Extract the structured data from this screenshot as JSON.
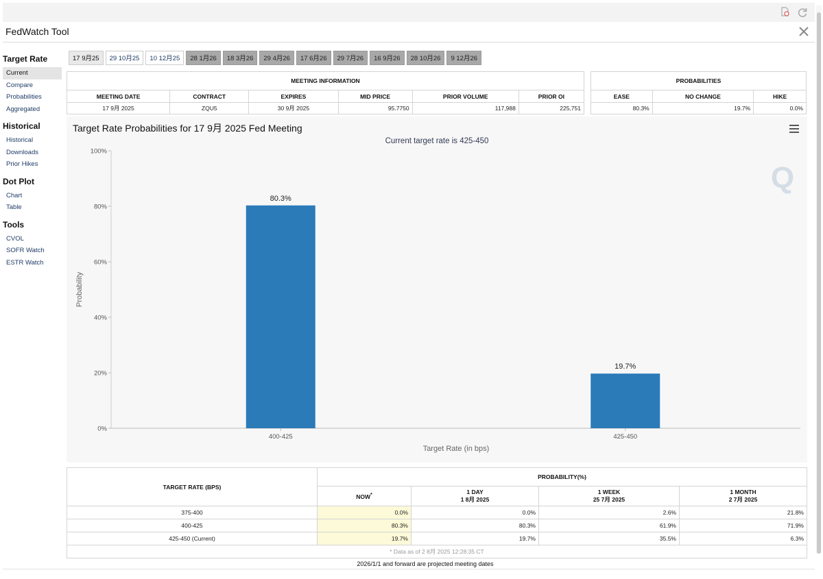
{
  "app": {
    "title": "FedWatch Tool"
  },
  "sidebar": {
    "groups": [
      {
        "heading": "Target Rate",
        "items": [
          "Current",
          "Compare",
          "Probabilities",
          "Aggregated"
        ]
      },
      {
        "heading": "Historical",
        "items": [
          "Historical",
          "Downloads",
          "Prior Hikes"
        ]
      },
      {
        "heading": "Dot Plot",
        "items": [
          "Chart",
          "Table"
        ]
      },
      {
        "heading": "Tools",
        "items": [
          "CVOL",
          "SOFR Watch",
          "ESTR Watch"
        ]
      }
    ],
    "active_item": "Current"
  },
  "tabs": [
    "17 9月25",
    "29 10月25",
    "10 12月25",
    "28 1月26",
    "18 3月26",
    "29 4月26",
    "17 6月26",
    "29 7月26",
    "16 9月26",
    "28 10月26",
    "9 12月26"
  ],
  "meeting_info": {
    "heading": "MEETING INFORMATION",
    "columns": [
      "MEETING DATE",
      "CONTRACT",
      "EXPIRES",
      "MID PRICE",
      "PRIOR VOLUME",
      "PRIOR OI"
    ],
    "row": [
      "17 9月 2025",
      "ZQU5",
      "30 9月 2025",
      "95.7750",
      "117,988",
      "225,751"
    ]
  },
  "probabilities": {
    "heading": "PROBABILITIES",
    "columns": [
      "EASE",
      "NO CHANGE",
      "HIKE"
    ],
    "row": [
      "80.3%",
      "19.7%",
      "0.0%"
    ]
  },
  "chart": {
    "title": "Target Rate Probabilities for 17 9月 2025 Fed Meeting",
    "subtitle": "Current target rate is 425-450",
    "watermark": "Q",
    "colors": {
      "bar": "#2b7bb9",
      "plot_bg": "#f7f7f7"
    }
  },
  "chart_data": {
    "type": "bar",
    "categories": [
      "400-425",
      "425-450"
    ],
    "values": [
      80.3,
      19.7
    ],
    "data_labels": [
      "80.3%",
      "19.7%"
    ],
    "title": "Target Rate Probabilities for 17 9月 2025 Fed Meeting",
    "subtitle": "Current target rate is 425-450",
    "xlabel": "Target Rate (in bps)",
    "ylabel": "Probability",
    "ylim": [
      0,
      100
    ],
    "yticks": [
      "0%",
      "20%",
      "40%",
      "60%",
      "80%",
      "100%"
    ],
    "grid": false
  },
  "prob_table": {
    "rate_heading": "TARGET RATE (BPS)",
    "prob_heading": "PROBABILITY(%)",
    "now_label": "NOW",
    "now_mark": "*",
    "col_1d": [
      "1 DAY",
      "1 8月 2025"
    ],
    "col_1w": [
      "1 WEEK",
      "25 7月 2025"
    ],
    "col_1m": [
      "1 MONTH",
      "2 7月 2025"
    ],
    "rows": [
      [
        "375-400",
        "0.0%",
        "0.0%",
        "2.6%",
        "21.8%"
      ],
      [
        "400-425",
        "80.3%",
        "80.3%",
        "61.9%",
        "71.9%"
      ],
      [
        "425-450 (Current)",
        "19.7%",
        "19.7%",
        "35.5%",
        "6.3%"
      ]
    ],
    "note": "* Data as of 2 8月 2025 12:28:35 CT"
  },
  "footer": {
    "note": "2026/1/1 and forward are projected meeting dates"
  },
  "icons": {
    "top": [
      "export-icon",
      "refresh-icon"
    ],
    "brand": "x-logo-icon",
    "menu": "hamburger-menu-icon"
  }
}
